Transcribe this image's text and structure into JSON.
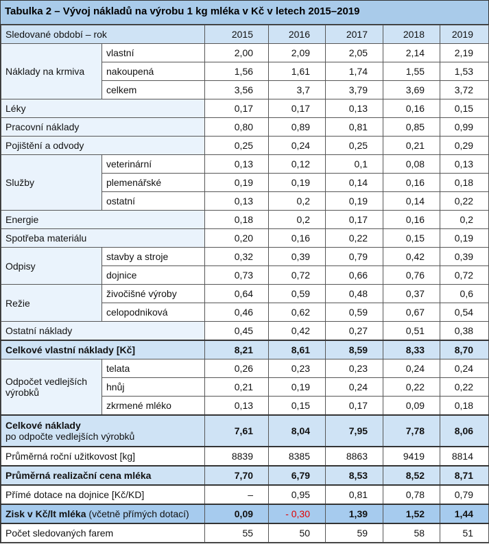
{
  "title": "Tabulka 2 – Vývoj nákladů na výrobu 1 kg mléka v Kč v letech 2015–2019",
  "header": {
    "label": "Sledované období – rok",
    "years": [
      "2015",
      "2016",
      "2017",
      "2018",
      "2019"
    ]
  },
  "rows": [
    {
      "group": "Náklady na krmiva",
      "span": 3,
      "sub": "vlastní",
      "values": [
        "2,00",
        "2,09",
        "2,05",
        "2,14",
        "2,19"
      ]
    },
    {
      "sub": "nakoupená",
      "values": [
        "1,56",
        "1,61",
        "1,74",
        "1,55",
        "1,53"
      ]
    },
    {
      "sub": "celkem",
      "values": [
        "3,56",
        "3,7",
        "3,79",
        "3,69",
        "3,72"
      ]
    },
    {
      "label": "Léky",
      "values": [
        "0,17",
        "0,17",
        "0,13",
        "0,16",
        "0,15"
      ]
    },
    {
      "label": "Pracovní náklady",
      "values": [
        "0,80",
        "0,89",
        "0,81",
        "0,85",
        "0,99"
      ]
    },
    {
      "label": "Pojištění a odvody",
      "values": [
        "0,25",
        "0,24",
        "0,25",
        "0,21",
        "0,29"
      ]
    },
    {
      "group": "Služby",
      "span": 3,
      "sub": "veterinární",
      "values": [
        "0,13",
        "0,12",
        "0,1",
        "0,08",
        "0,13"
      ]
    },
    {
      "sub": "plemenářské",
      "values": [
        "0,19",
        "0,19",
        "0,14",
        "0,16",
        "0,18"
      ]
    },
    {
      "sub": "ostatní",
      "values": [
        "0,13",
        "0,2",
        "0,19",
        "0,14",
        "0,22"
      ]
    },
    {
      "label": "Energie",
      "values": [
        "0,18",
        "0,2",
        "0,17",
        "0,16",
        "0,2"
      ]
    },
    {
      "label": "Spotřeba materiálu",
      "values": [
        "0,20",
        "0,16",
        "0,22",
        "0,15",
        "0,19"
      ]
    },
    {
      "group": "Odpisy",
      "span": 2,
      "sub": "stavby a stroje",
      "values": [
        "0,32",
        "0,39",
        "0,79",
        "0,42",
        "0,39"
      ]
    },
    {
      "sub": "dojnice",
      "values": [
        "0,73",
        "0,72",
        "0,66",
        "0,76",
        "0,72"
      ]
    },
    {
      "group": "Režie",
      "span": 2,
      "sub": "živočišné výroby",
      "values": [
        "0,64",
        "0,59",
        "0,48",
        "0,37",
        "0,6"
      ]
    },
    {
      "sub": "celopodniková",
      "values": [
        "0,46",
        "0,62",
        "0,59",
        "0,67",
        "0,54"
      ]
    },
    {
      "label": "Ostatní náklady",
      "values": [
        "0,45",
        "0,42",
        "0,27",
        "0,51",
        "0,38"
      ]
    },
    {
      "label": "Celkové vlastní náklady [Kč]",
      "style": "hl",
      "values": [
        "8,21",
        "8,61",
        "8,59",
        "8,33",
        "8,70"
      ]
    },
    {
      "group": "Odpočet vedlejších výrobků",
      "span": 3,
      "sub": "telata",
      "values": [
        "0,26",
        "0,23",
        "0,23",
        "0,24",
        "0,24"
      ]
    },
    {
      "sub": "hnůj",
      "values": [
        "0,21",
        "0,19",
        "0,24",
        "0,22",
        "0,22"
      ]
    },
    {
      "sub": "zkrmené mléko",
      "values": [
        "0,13",
        "0,15",
        "0,17",
        "0,09",
        "0,18"
      ]
    },
    {
      "label": "Celkové náklady",
      "label2": "po odpočte vedlejších výrobků",
      "style": "hl tall",
      "values": [
        "7,61",
        "8,04",
        "7,95",
        "7,78",
        "8,06"
      ]
    },
    {
      "label": "Průměrná roční užitkovost [kg]",
      "style": "plain",
      "values": [
        "8839",
        "8385",
        "8863",
        "9419",
        "8814"
      ]
    },
    {
      "label": "Průměrná realizační cena mléka",
      "style": "hl",
      "values": [
        "7,70",
        "6,79",
        "8,53",
        "8,52",
        "8,71"
      ]
    },
    {
      "label": "Přímé dotace na dojnice [Kč/KD]",
      "style": "plain",
      "values": [
        "–",
        "0,95",
        "0,81",
        "0,78",
        "0,79"
      ]
    },
    {
      "label": "Zisk v Kč/lt mléka",
      "label2": "(včetně přímých dotací)",
      "style": "hl dk inline",
      "values": [
        "0,09",
        "- 0,30",
        "1,39",
        "1,52",
        "1,44"
      ],
      "negative_index": 1,
      "negative_color": "#e00000"
    },
    {
      "label": "Počet sledovaných farem",
      "style": "plain",
      "values": [
        "55",
        "50",
        "59",
        "58",
        "51"
      ]
    }
  ]
}
